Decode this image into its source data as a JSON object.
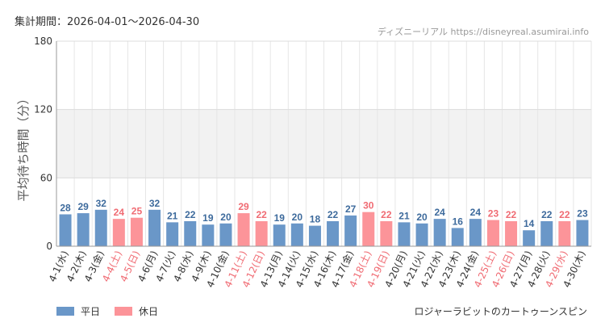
{
  "header": {
    "period_label": "集計期間：2026-04-01～2026-04-30",
    "site_name": "ディズニーリアル",
    "site_url": "https://disneyreal.asumirai.info"
  },
  "legend": {
    "weekday_label": "平日",
    "holiday_label": "休日"
  },
  "footer": {
    "attraction": "ロジャーラビットのカートゥーンスピン"
  },
  "colors": {
    "weekday": "#6a97c8",
    "holiday": "#fc9499",
    "weekday_text": "#3d6a9c",
    "holiday_text": "#f06b73",
    "band": "#f2f2f2"
  },
  "chart_data": {
    "type": "bar",
    "ylabel": "平均待ち時間（分）",
    "ylim": [
      0,
      180
    ],
    "yticks": [
      0,
      60,
      120,
      180
    ],
    "grid": true,
    "legend_position": "bottom-left",
    "categories": [
      "4-1(水)",
      "4-2(木)",
      "4-3(金)",
      "4-4(土)",
      "4-5(日)",
      "4-6(月)",
      "4-7(火)",
      "4-8(水)",
      "4-9(木)",
      "4-10(金)",
      "4-11(土)",
      "4-12(日)",
      "4-13(月)",
      "4-14(火)",
      "4-15(水)",
      "4-16(木)",
      "4-17(金)",
      "4-18(土)",
      "4-19(日)",
      "4-20(月)",
      "4-21(火)",
      "4-22(水)",
      "4-23(木)",
      "4-24(金)",
      "4-25(土)",
      "4-26(日)",
      "4-27(月)",
      "4-28(火)",
      "4-29(水)",
      "4-30(木)"
    ],
    "values": [
      28,
      29,
      32,
      24,
      25,
      32,
      21,
      22,
      19,
      20,
      29,
      22,
      19,
      20,
      18,
      22,
      27,
      30,
      22,
      21,
      20,
      24,
      16,
      24,
      23,
      22,
      14,
      22,
      22,
      23
    ],
    "day_type": [
      "平日",
      "平日",
      "平日",
      "休日",
      "休日",
      "平日",
      "平日",
      "平日",
      "平日",
      "平日",
      "休日",
      "休日",
      "平日",
      "平日",
      "平日",
      "平日",
      "平日",
      "休日",
      "休日",
      "平日",
      "平日",
      "平日",
      "平日",
      "平日",
      "休日",
      "休日",
      "平日",
      "平日",
      "休日",
      "平日"
    ]
  }
}
